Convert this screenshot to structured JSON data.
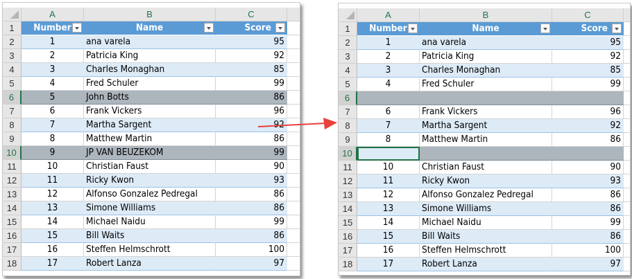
{
  "columns": [
    "A",
    "B",
    "C"
  ],
  "headers": {
    "number": "Number",
    "name": "Name",
    "score": "Score"
  },
  "row_numbers": [
    "1",
    "2",
    "3",
    "4",
    "5",
    "6",
    "7",
    "8",
    "9",
    "10",
    "11",
    "12",
    "13",
    "14",
    "15",
    "16",
    "17",
    "18"
  ],
  "left": {
    "rows": [
      {
        "n": "1",
        "name": "ana varela",
        "s": "95"
      },
      {
        "n": "2",
        "name": "Patricia King",
        "s": "92"
      },
      {
        "n": "3",
        "name": "Charles Monaghan",
        "s": "85"
      },
      {
        "n": "4",
        "name": "Fred Schuler",
        "s": "99"
      },
      {
        "n": "5",
        "name": "John Botts",
        "s": "86",
        "selected": true
      },
      {
        "n": "6",
        "name": "Frank Vickers",
        "s": "96"
      },
      {
        "n": "7",
        "name": "Martha Sargent",
        "s": "92"
      },
      {
        "n": "8",
        "name": "Matthew Martin",
        "s": "86"
      },
      {
        "n": "9",
        "name": "JP VAN BEUZEKOM",
        "s": "99",
        "selected": true
      },
      {
        "n": "10",
        "name": "Christian Faust",
        "s": "90"
      },
      {
        "n": "11",
        "name": "Ricky Kwon",
        "s": "93"
      },
      {
        "n": "12",
        "name": "Alfonso Gonzalez Pedregal",
        "s": "86"
      },
      {
        "n": "13",
        "name": "Simone Williams",
        "s": "86"
      },
      {
        "n": "14",
        "name": "Michael Naidu",
        "s": "99"
      },
      {
        "n": "15",
        "name": "Bill Waits",
        "s": "86"
      },
      {
        "n": "16",
        "name": "Steffen Helmschrott",
        "s": "100"
      },
      {
        "n": "17",
        "name": "Robert Lanza",
        "s": "97"
      }
    ]
  },
  "right": {
    "rows": [
      {
        "n": "1",
        "name": "ana varela",
        "s": "95"
      },
      {
        "n": "2",
        "name": "Patricia King",
        "s": "92"
      },
      {
        "n": "3",
        "name": "Charles Monaghan",
        "s": "85"
      },
      {
        "n": "4",
        "name": "Fred Schuler",
        "s": "99"
      },
      {
        "n": "",
        "name": "",
        "s": "",
        "selected": true
      },
      {
        "n": "6",
        "name": "Frank Vickers",
        "s": "96"
      },
      {
        "n": "7",
        "name": "Martha Sargent",
        "s": "92"
      },
      {
        "n": "8",
        "name": "Matthew Martin",
        "s": "86"
      },
      {
        "n": "",
        "name": "",
        "s": "",
        "selected": true,
        "active": true
      },
      {
        "n": "10",
        "name": "Christian Faust",
        "s": "90"
      },
      {
        "n": "11",
        "name": "Ricky Kwon",
        "s": "93"
      },
      {
        "n": "12",
        "name": "Alfonso Gonzalez Pedregal",
        "s": "86"
      },
      {
        "n": "13",
        "name": "Simone Williams",
        "s": "86"
      },
      {
        "n": "14",
        "name": "Michael Naidu",
        "s": "99"
      },
      {
        "n": "15",
        "name": "Bill Waits",
        "s": "86"
      },
      {
        "n": "16",
        "name": "Steffen Helmschrott",
        "s": "100"
      },
      {
        "n": "17",
        "name": "Robert Lanza",
        "s": "97"
      }
    ]
  },
  "colors": {
    "header": "#5b9bd5",
    "band": "#ddebf7",
    "selected": "#adb5bd",
    "arrow": "#e8413c",
    "accent": "#217346"
  }
}
